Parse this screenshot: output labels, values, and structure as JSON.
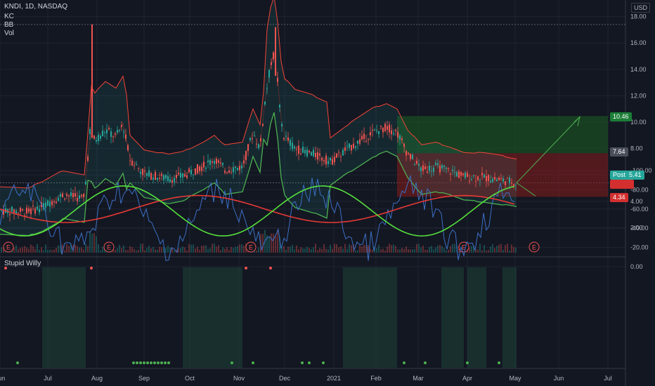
{
  "header": {
    "symbol": "KNDI, 1D, NASDAQ",
    "indicators": [
      "KC",
      "BB",
      "Vol"
    ],
    "currency": "USD"
  },
  "lower_pane": {
    "title": "Stupid Willy"
  },
  "colors": {
    "up": "#26a69a",
    "down": "#ef5350",
    "bb_lower": "#4caf50",
    "bb_upper": "#f44336",
    "profit_zone": "#1b5e20",
    "loss_zone": "#7f1d1d",
    "fast": "#56e03c",
    "slow": "#e53935",
    "willy": "#3b6fc4",
    "dots": "#4caf50"
  },
  "price_axis": {
    "ticks": [
      "18.00",
      "16.00",
      "14.00",
      "12.00",
      "10.00",
      "8.00",
      "6.00",
      "4.00",
      "2.00"
    ]
  },
  "osc_axis": {
    "ticks": [
      "0.00",
      "-20.00",
      "-40.00",
      "-60.00",
      "-80.00",
      "-100.00"
    ]
  },
  "time_axis": {
    "labels": [
      "Jun",
      "Jul",
      "Aug",
      "Sep",
      "Oct",
      "Nov",
      "Dec",
      "2021",
      "Feb",
      "Mar",
      "Apr",
      "May",
      "Jun",
      "Jul"
    ]
  },
  "earnings_marker": "E",
  "price_tags": {
    "target": "10.46",
    "entry": "7.64",
    "post_label": "Post",
    "post_value": "5.41",
    "stop": "4.34"
  },
  "chart_data": {
    "type": "line",
    "series": [
      {
        "name": "KNDI",
        "x": [
          "Jun",
          "Jul",
          "Aug",
          "Sep",
          "Oct",
          "Nov",
          "Dec",
          "2021",
          "Feb",
          "Mar",
          "Apr",
          "May"
        ],
        "values": [
          3.3,
          4.0,
          9.5,
          6.1,
          6.8,
          6.4,
          9.0,
          7.0,
          9.7,
          6.4,
          5.8,
          5.4
        ]
      }
    ],
    "ylim": [
      1,
      19
    ]
  }
}
